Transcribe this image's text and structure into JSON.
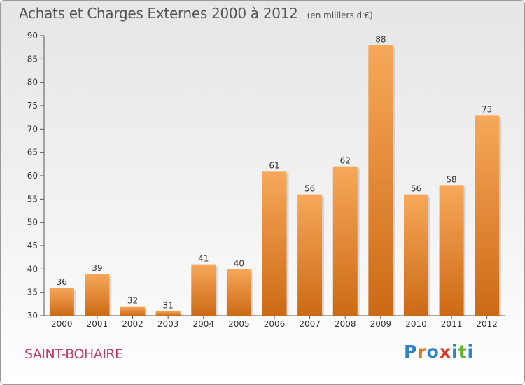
{
  "header": {
    "title": "Achats et Charges Externes 2000 à 2012",
    "subtitle": "(en milliers d'€)"
  },
  "footer": {
    "commune": "SAINT-BOHAIRE",
    "logo_text": "Proxiti",
    "logo_colors": [
      "#2e82c8",
      "#e07a1a",
      "#2e82c8",
      "#d63a2a",
      "#2e82c8",
      "#66b02e",
      "#2e82c8"
    ]
  },
  "colors": {
    "bar_top": "#f7a85a",
    "bar_bottom": "#cc6a14",
    "axis": "#555555",
    "label": "#333333"
  },
  "chart_data": {
    "type": "bar",
    "categories": [
      "2000",
      "2001",
      "2002",
      "2003",
      "2004",
      "2005",
      "2006",
      "2007",
      "2008",
      "2009",
      "2010",
      "2011",
      "2012"
    ],
    "values": [
      36,
      39,
      32,
      31,
      41,
      40,
      61,
      56,
      62,
      88,
      56,
      58,
      73
    ],
    "data_labels": [
      "36",
      "39",
      "32",
      "31",
      "41",
      "40",
      "61",
      "56",
      "62",
      "88",
      "56",
      "58",
      "73"
    ],
    "y_ticks": [
      "30",
      "35",
      "40",
      "45",
      "50",
      "55",
      "60",
      "65",
      "70",
      "75",
      "80",
      "85",
      "90"
    ],
    "ylim": [
      30,
      90
    ],
    "grid": false,
    "xlabel": "",
    "ylabel": ""
  }
}
